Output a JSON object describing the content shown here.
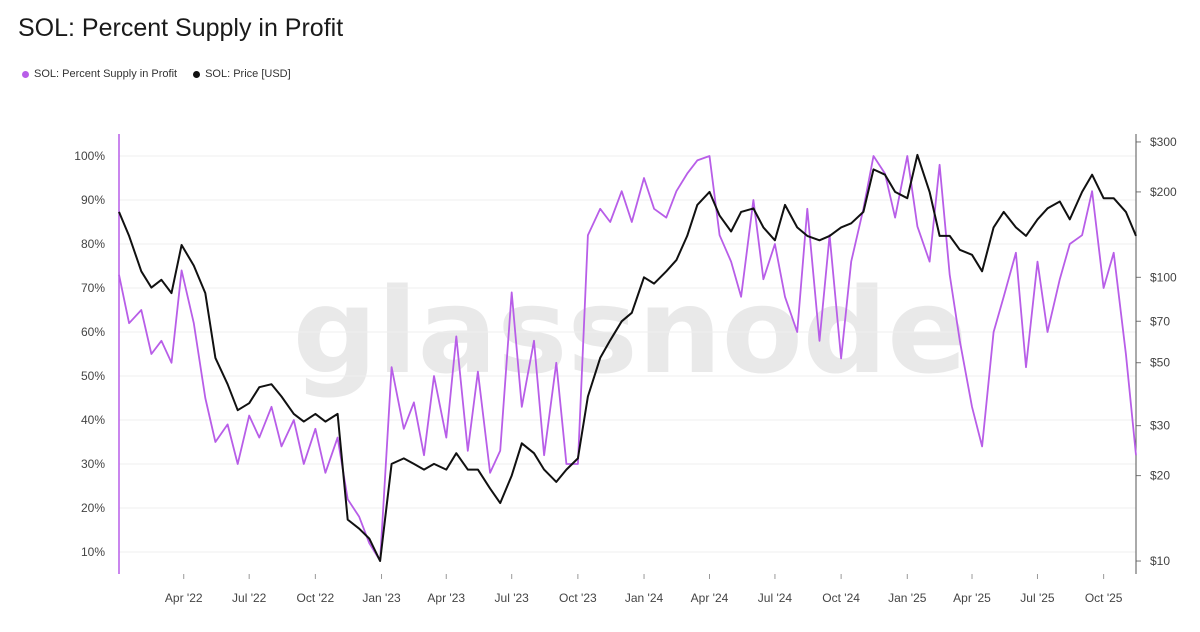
{
  "title": "SOL: Percent Supply in Profit",
  "legend": [
    {
      "label": "SOL: Percent Supply in Profit",
      "color": "#b85ee8"
    },
    {
      "label": "SOL: Price [USD]",
      "color": "#111111"
    }
  ],
  "watermark": "glassnode",
  "colors": {
    "supply": "#b85ee8",
    "price": "#111111",
    "grid": "#efefef",
    "axis": "#b85ee8"
  },
  "chart_data": {
    "type": "line",
    "title": "SOL: Percent Supply in Profit",
    "xlabel": "",
    "y_left": {
      "label": "",
      "ticks": [
        "10%",
        "20%",
        "30%",
        "40%",
        "50%",
        "60%",
        "70%",
        "80%",
        "90%",
        "100%"
      ],
      "range": [
        5,
        105
      ]
    },
    "y_right": {
      "label": "",
      "scale": "log",
      "ticks": [
        "$10",
        "$20",
        "$30",
        "$50",
        "$70",
        "$100",
        "$200",
        "$300"
      ],
      "tick_values": [
        10,
        20,
        30,
        50,
        70,
        100,
        200,
        300
      ],
      "range": [
        9,
        320
      ]
    },
    "x_ticks": [
      "Apr '22",
      "Jul '22",
      "Oct '22",
      "Jan '23",
      "Apr '23",
      "Jul '23",
      "Oct '23",
      "Jan '24",
      "Apr '24",
      "Jul '24",
      "Oct '24",
      "Jan '25",
      "Apr '25",
      "Jul '25",
      "Oct '25"
    ],
    "x_tick_dates": [
      "2022-04-01",
      "2022-07-01",
      "2022-10-01",
      "2023-01-01",
      "2023-04-01",
      "2023-07-01",
      "2023-10-01",
      "2024-01-01",
      "2024-04-01",
      "2024-07-01",
      "2024-10-01",
      "2025-01-01",
      "2025-04-01",
      "2025-07-01",
      "2025-10-01"
    ],
    "x_range": [
      "2022-01-01",
      "2025-11-15"
    ],
    "grid": true,
    "legend_position": "top-left",
    "series": [
      {
        "name": "SOL: Percent Supply in Profit",
        "axis": "left",
        "x": [
          "2022-01-01",
          "2022-01-15",
          "2022-02-01",
          "2022-02-15",
          "2022-03-01",
          "2022-03-15",
          "2022-03-29",
          "2022-04-15",
          "2022-05-01",
          "2022-05-15",
          "2022-06-01",
          "2022-06-15",
          "2022-07-01",
          "2022-07-15",
          "2022-08-01",
          "2022-08-15",
          "2022-09-01",
          "2022-09-15",
          "2022-10-01",
          "2022-10-15",
          "2022-11-01",
          "2022-11-15",
          "2022-12-01",
          "2022-12-15",
          "2022-12-30",
          "2023-01-15",
          "2023-02-01",
          "2023-02-15",
          "2023-03-01",
          "2023-03-15",
          "2023-04-01",
          "2023-04-15",
          "2023-05-01",
          "2023-05-15",
          "2023-06-01",
          "2023-06-15",
          "2023-07-01",
          "2023-07-15",
          "2023-08-01",
          "2023-08-15",
          "2023-09-01",
          "2023-09-15",
          "2023-10-01",
          "2023-10-15",
          "2023-11-01",
          "2023-11-15",
          "2023-12-01",
          "2023-12-15",
          "2024-01-01",
          "2024-01-15",
          "2024-02-01",
          "2024-02-15",
          "2024-03-01",
          "2024-03-15",
          "2024-04-01",
          "2024-04-15",
          "2024-05-01",
          "2024-05-15",
          "2024-06-01",
          "2024-06-15",
          "2024-07-01",
          "2024-07-15",
          "2024-08-01",
          "2024-08-15",
          "2024-09-01",
          "2024-09-15",
          "2024-10-01",
          "2024-10-15",
          "2024-11-01",
          "2024-11-15",
          "2024-12-01",
          "2024-12-15",
          "2025-01-01",
          "2025-01-15",
          "2025-02-01",
          "2025-02-15",
          "2025-03-01",
          "2025-03-15",
          "2025-04-01",
          "2025-04-15",
          "2025-05-01",
          "2025-05-15",
          "2025-06-01",
          "2025-06-15",
          "2025-07-01",
          "2025-07-15",
          "2025-08-01",
          "2025-08-15",
          "2025-09-01",
          "2025-09-15",
          "2025-10-01",
          "2025-10-15",
          "2025-11-01",
          "2025-11-15"
        ],
        "values": [
          73,
          62,
          65,
          55,
          58,
          53,
          74,
          62,
          45,
          35,
          39,
          30,
          41,
          36,
          43,
          34,
          40,
          30,
          38,
          28,
          36,
          22,
          18,
          12,
          8,
          52,
          38,
          44,
          32,
          50,
          36,
          59,
          33,
          51,
          28,
          33,
          69,
          43,
          58,
          32,
          53,
          30,
          30,
          82,
          88,
          85,
          92,
          85,
          95,
          88,
          86,
          92,
          96,
          99,
          100,
          82,
          76,
          68,
          90,
          72,
          80,
          68,
          60,
          88,
          58,
          82,
          54,
          76,
          88,
          100,
          96,
          86,
          100,
          84,
          76,
          98,
          73,
          58,
          43,
          34,
          60,
          68,
          78,
          52,
          76,
          60,
          72,
          80,
          82,
          92,
          70,
          78,
          55,
          32
        ]
      },
      {
        "name": "SOL: Price [USD]",
        "axis": "right",
        "x": [
          "2022-01-01",
          "2022-01-15",
          "2022-02-01",
          "2022-02-15",
          "2022-03-01",
          "2022-03-15",
          "2022-03-29",
          "2022-04-15",
          "2022-05-01",
          "2022-05-15",
          "2022-06-01",
          "2022-06-15",
          "2022-07-01",
          "2022-07-15",
          "2022-08-01",
          "2022-08-15",
          "2022-09-01",
          "2022-09-15",
          "2022-10-01",
          "2022-10-15",
          "2022-11-01",
          "2022-11-15",
          "2022-12-01",
          "2022-12-15",
          "2022-12-30",
          "2023-01-15",
          "2023-02-01",
          "2023-02-15",
          "2023-03-01",
          "2023-03-15",
          "2023-04-01",
          "2023-04-15",
          "2023-05-01",
          "2023-05-15",
          "2023-06-01",
          "2023-06-15",
          "2023-07-01",
          "2023-07-15",
          "2023-08-01",
          "2023-08-15",
          "2023-09-01",
          "2023-09-15",
          "2023-10-01",
          "2023-10-15",
          "2023-11-01",
          "2023-11-15",
          "2023-12-01",
          "2023-12-15",
          "2024-01-01",
          "2024-01-15",
          "2024-02-01",
          "2024-02-15",
          "2024-03-01",
          "2024-03-15",
          "2024-04-01",
          "2024-04-15",
          "2024-05-01",
          "2024-05-15",
          "2024-06-01",
          "2024-06-15",
          "2024-07-01",
          "2024-07-15",
          "2024-08-01",
          "2024-08-15",
          "2024-09-01",
          "2024-09-15",
          "2024-10-01",
          "2024-10-15",
          "2024-11-01",
          "2024-11-15",
          "2024-12-01",
          "2024-12-15",
          "2025-01-01",
          "2025-01-15",
          "2025-02-01",
          "2025-02-15",
          "2025-03-01",
          "2025-03-15",
          "2025-04-01",
          "2025-04-15",
          "2025-05-01",
          "2025-05-15",
          "2025-06-01",
          "2025-06-15",
          "2025-07-01",
          "2025-07-15",
          "2025-08-01",
          "2025-08-15",
          "2025-09-01",
          "2025-09-15",
          "2025-10-01",
          "2025-10-15",
          "2025-11-01",
          "2025-11-15"
        ],
        "values": [
          170,
          140,
          105,
          92,
          98,
          88,
          130,
          110,
          88,
          52,
          42,
          34,
          36,
          41,
          42,
          38,
          33,
          31,
          33,
          31,
          33,
          14,
          13,
          12,
          10,
          22,
          23,
          22,
          21,
          22,
          21,
          24,
          21,
          21,
          18,
          16,
          20,
          26,
          24,
          21,
          19,
          21,
          23,
          38,
          52,
          60,
          70,
          75,
          100,
          95,
          105,
          115,
          140,
          180,
          200,
          165,
          145,
          170,
          175,
          150,
          135,
          180,
          150,
          140,
          135,
          140,
          150,
          155,
          170,
          240,
          230,
          200,
          190,
          270,
          200,
          140,
          140,
          125,
          120,
          105,
          150,
          170,
          150,
          140,
          160,
          175,
          185,
          160,
          200,
          230,
          190,
          190,
          170,
          140
        ]
      }
    ]
  }
}
